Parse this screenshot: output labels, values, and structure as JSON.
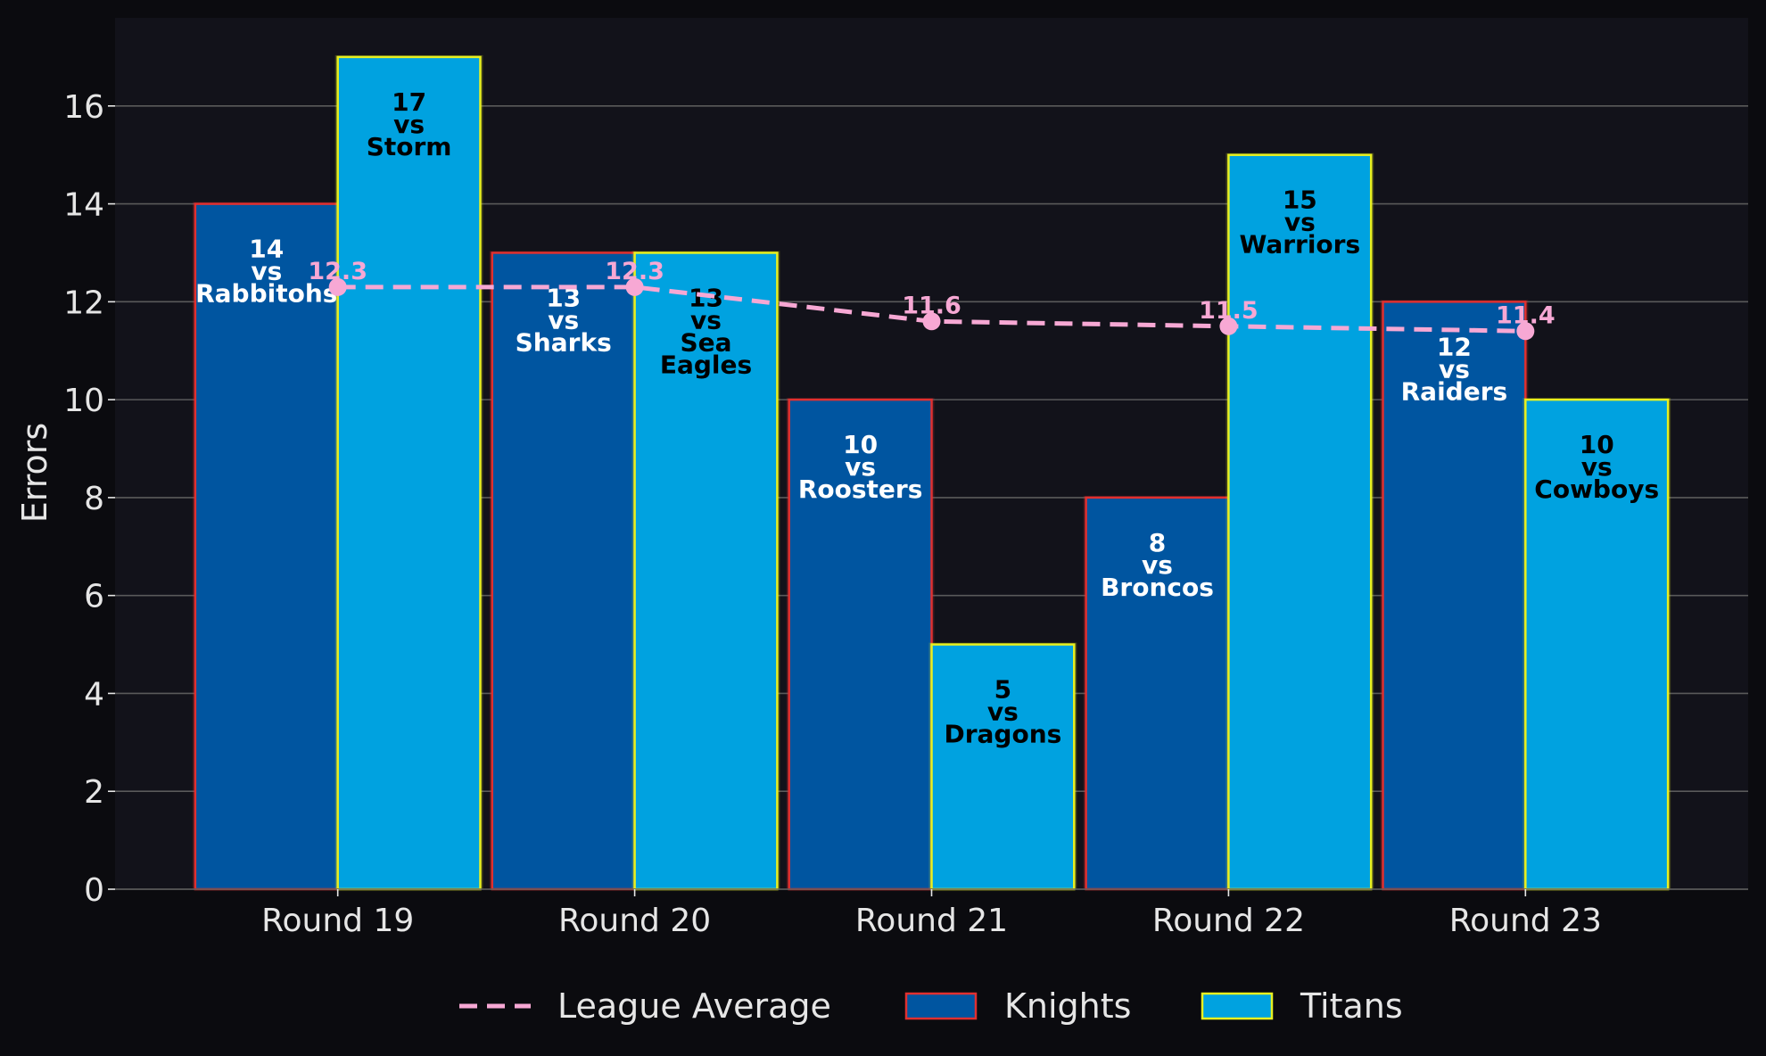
{
  "chart_data": {
    "type": "bar",
    "ylabel": "Errors",
    "ylim": [
      0,
      17.8
    ],
    "yticks": [
      0,
      2,
      4,
      6,
      8,
      10,
      12,
      14,
      16
    ],
    "grid": true,
    "legend_position": "bottom-center",
    "categories": [
      "Round 19",
      "Round 20",
      "Round 21",
      "Round 22",
      "Round 23"
    ],
    "series": [
      {
        "name": "Knights",
        "type": "bar",
        "fill": "#0055a0",
        "edge": "#e03030",
        "label_color": "#ffffff",
        "values": [
          14,
          13,
          10,
          8,
          12
        ],
        "opponents": [
          "Rabbitohs",
          "Sharks",
          "Roosters",
          "Broncos",
          "Raiders"
        ]
      },
      {
        "name": "Titans",
        "type": "bar",
        "fill": "#00a2e0",
        "edge": "#e8f020",
        "label_color": "#000000",
        "values": [
          17,
          13,
          5,
          15,
          10
        ],
        "opponents": [
          "Storm",
          "Sea Eagles",
          "Dragons",
          "Warriors",
          "Cowboys"
        ]
      },
      {
        "name": "League Average",
        "type": "line",
        "style": "dashed",
        "color": "#f7a8d4",
        "values": [
          12.3,
          12.3,
          11.6,
          11.5,
          11.4
        ]
      }
    ],
    "vs_word": "vs"
  },
  "colors": {
    "page_bg": "#0b0b0f",
    "plot_bg": "#12121a",
    "grid": "#5a5a5a",
    "text": "#e6e6e6"
  }
}
